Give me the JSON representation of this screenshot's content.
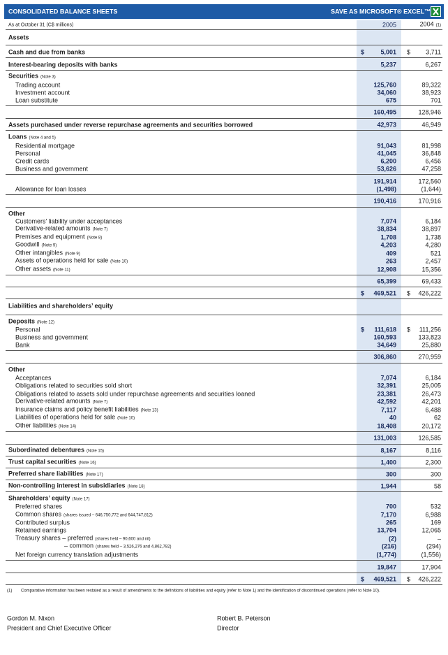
{
  "header": {
    "title": "CONSOLIDATED BALANCE SHEETS",
    "action": "SAVE AS MICROSOFT® EXCEL™"
  },
  "table": {
    "caption": "As at October 31 (C$ millions)",
    "columns": [
      "2005",
      "2004"
    ],
    "column_note": "(1)",
    "rows": [
      {
        "label": "Assets"
      },
      {
        "label": "Cash and due from banks",
        "currency": [
          "$",
          "$"
        ],
        "values": [
          "5,001",
          "3,711"
        ]
      },
      {
        "label": "Interest-bearing deposits with banks",
        "values": [
          "5,237",
          "6,267"
        ]
      },
      {
        "label": "Securities",
        "note": "(Note 3)"
      },
      {
        "label": "Trading account",
        "values": [
          "125,760",
          "89,322"
        ]
      },
      {
        "label": "Investment account",
        "values": [
          "34,060",
          "38,923"
        ]
      },
      {
        "label": "Loan substitute",
        "values": [
          "675",
          "701"
        ]
      },
      {
        "values": [
          "160,495",
          "128,946"
        ]
      },
      {
        "label": "Assets purchased under reverse repurchase agreements and securities borrowed",
        "values": [
          "42,973",
          "46,949"
        ]
      },
      {
        "label": "Loans",
        "note": "(Note 4 and 5)"
      },
      {
        "label": "Residential mortgage",
        "values": [
          "91,043",
          "81,998"
        ]
      },
      {
        "label": "Personal",
        "values": [
          "41,045",
          "36,848"
        ]
      },
      {
        "label": "Credit cards",
        "values": [
          "6,200",
          "6,456"
        ]
      },
      {
        "label": "Business and government",
        "values": [
          "53,626",
          "47,258"
        ]
      },
      {
        "values": [
          "191,914",
          "172,560"
        ]
      },
      {
        "label": "Allowance for loan losses",
        "values": [
          "(1,498)",
          "(1,644)"
        ]
      },
      {
        "values": [
          "190,416",
          "170,916"
        ]
      },
      {
        "label": "Other"
      },
      {
        "label": "Customers’ liability under acceptances",
        "values": [
          "7,074",
          "6,184"
        ]
      },
      {
        "label": "Derivative-related amounts",
        "note": "(Note 7)",
        "values": [
          "38,834",
          "38,897"
        ]
      },
      {
        "label": "Premises and equipment",
        "note": "(Note 8)",
        "values": [
          "1,708",
          "1,738"
        ]
      },
      {
        "label": "Goodwill",
        "note": "(Note 9)",
        "values": [
          "4,203",
          "4,280"
        ]
      },
      {
        "label": "Other intangibles",
        "note": "(Note 9)",
        "values": [
          "409",
          "521"
        ]
      },
      {
        "label": "Assets of operations held for sale",
        "note": "(Note 10)",
        "values": [
          "263",
          "2,457"
        ]
      },
      {
        "label": "Other assets",
        "note": "(Note 11)",
        "values": [
          "12,908",
          "15,356"
        ]
      },
      {
        "values": [
          "65,399",
          "69,433"
        ]
      },
      {
        "currency": [
          "$",
          "$"
        ],
        "values": [
          "469,521",
          "426,222"
        ]
      },
      {
        "label": "Liabilities and shareholders’ equity"
      },
      {
        "label": "Deposits",
        "note": "(Note 12)"
      },
      {
        "label": "Personal",
        "currency": [
          "$",
          "$"
        ],
        "values": [
          "111,618",
          "111,256"
        ]
      },
      {
        "label": "Business and government",
        "values": [
          "160,593",
          "133,823"
        ]
      },
      {
        "label": "Bank",
        "values": [
          "34,649",
          "25,880"
        ]
      },
      {
        "values": [
          "306,860",
          "270,959"
        ]
      },
      {
        "label": "Other"
      },
      {
        "label": "Acceptances",
        "values": [
          "7,074",
          "6,184"
        ]
      },
      {
        "label": "Obligations related to securities sold short",
        "values": [
          "32,391",
          "25,005"
        ]
      },
      {
        "label": "Obligations related to assets sold under repurchase agreements and securities loaned",
        "values": [
          "23,381",
          "26,473"
        ]
      },
      {
        "label": "Derivative-related amounts",
        "note": "(Note 7)",
        "values": [
          "42,592",
          "42,201"
        ]
      },
      {
        "label": "Insurance claims and policy benefit liabilities",
        "note": "(Note 13)",
        "values": [
          "7,117",
          "6,488"
        ]
      },
      {
        "label": "Liabilities of operations held for sale",
        "note": "(Note 10)",
        "values": [
          "40",
          "62"
        ]
      },
      {
        "label": "Other liabilities",
        "note": "(Note 14)",
        "values": [
          "18,408",
          "20,172"
        ]
      },
      {
        "values": [
          "131,003",
          "126,585"
        ]
      },
      {
        "label": "Subordinated debentures",
        "note": "(Note 15)",
        "values": [
          "8,167",
          "8,116"
        ]
      },
      {
        "label": "Trust capital securities",
        "note": "(Note 16)",
        "values": [
          "1,400",
          "2,300"
        ]
      },
      {
        "label": "Preferred share liabilities",
        "note": "(Note 17)",
        "values": [
          "300",
          "300"
        ]
      },
      {
        "label": "Non-controlling interest in subsidiaries",
        "note": "(Note 18)",
        "values": [
          "1,944",
          "58"
        ]
      },
      {
        "label": "Shareholders’ equity",
        "note": "(Note 17)"
      },
      {
        "label": "Preferred shares",
        "values": [
          "700",
          "532"
        ]
      },
      {
        "label": "Common shares",
        "note": "(shares issued – 646,750,772 and 644,747,812)",
        "values": [
          "7,170",
          "6,988"
        ]
      },
      {
        "label": "Contributed surplus",
        "values": [
          "265",
          "169"
        ]
      },
      {
        "label": "Retained earnings",
        "values": [
          "13,704",
          "12,065"
        ]
      },
      {
        "label": "Treasury shares – preferred",
        "note": "(shares held – 90,600 and nil)",
        "values": [
          "(2)",
          "–"
        ]
      },
      {
        "label": "– common",
        "note": "(shares held – 3,526,276 and 4,862,782)",
        "values": [
          "(216)",
          "(294)"
        ]
      },
      {
        "label": "Net foreign currency translation adjustments",
        "values": [
          "(1,774)",
          "(1,556)"
        ]
      },
      {
        "values": [
          "19,847",
          "17,904"
        ]
      },
      {
        "currency": [
          "$",
          "$"
        ],
        "values": [
          "469,521",
          "426,222"
        ]
      }
    ]
  },
  "footnote": {
    "marker": "(1)",
    "text": "Comparative information has been restated as a result of amendments to the definitions of liabilities and equity (refer to Note 1) and the identification of discontinued operations (refer to Note 10)."
  },
  "signatures": [
    {
      "name": "Gordon M. Nixon",
      "title": "President and Chief Executive Officer"
    },
    {
      "name": "Robert B. Peterson",
      "title": "Director"
    }
  ]
}
